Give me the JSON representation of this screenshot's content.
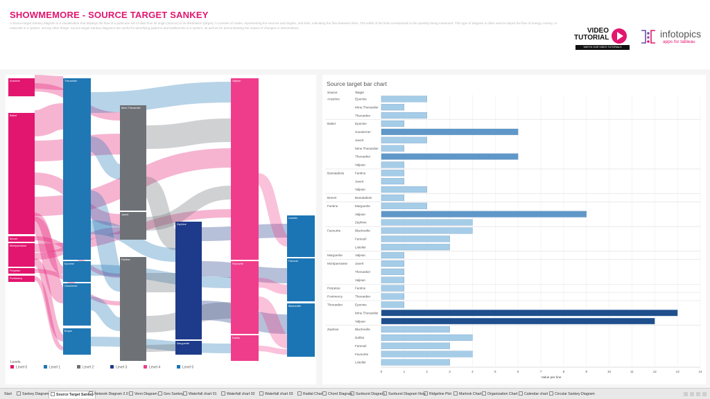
{
  "header": {
    "title": "SHOWMEMORE - SOURCE TARGET SANKEY",
    "description": "A source-target Sankey diagram is a visualization that displays the flow of a particular set of data from its origin (source) to its destination (target). It consists of nodes, representing the sources and targets, and links, indicating the flow between them. The width of the links corresponds to the quantity being measured. This type of diagram is often used to depict the flow of energy, money, or materials in a system, among other things. Source-target Sankey diagrams are useful for identifying patterns and bottlenecks in a system, as well as for demonstrating the impact of changes or interventions."
  },
  "video_logo": {
    "line1": "VIDEO",
    "line2": "TUTORIAL",
    "strip": "WATCH OUR VIDEO TUTORIALS",
    "icon": "play-icon",
    "color": "#e2156f"
  },
  "infotopics_logo": {
    "name": "infotopics",
    "tagline": "apps for tableau",
    "icon": "infotopics-logo-icon"
  },
  "colors": {
    "level0": "#e2156f",
    "level1": "#1f77b4",
    "level2": "#6e7176",
    "level3": "#1e3a8a",
    "level4": "#ef3d8c",
    "level5": "#1b75b5",
    "bar_light": "#a6cde8",
    "bar_mid": "#5f98c8",
    "bar_dark": "#1f4f8c"
  },
  "sankey": {
    "nodes": {
      "Anselme": "Anselme",
      "Babet": "Babet",
      "Brevet": "Brevet",
      "Montparnasse": "Montparnasse",
      "Perpetue": "Perpetue",
      "Pontmercy": "Pontmercy",
      "Thenardier": "Thenardier",
      "Eponine": "Eponine",
      "Gueulemer": "Gueulemer",
      "Brujon": "Brujon",
      "MmeThenardier": "Mme.Thenardier",
      "Javert": "Javert",
      "Fantine": "Fantine",
      "Zephine": "Zephine",
      "Marguerite": "Marguerite",
      "Valjean": "Valjean",
      "Favourite": "Favourite",
      "Dahlia": "Dahlia",
      "Listolier": "Listolier",
      "Fameuil": "Fameuil",
      "Blacheville": "Blacheville"
    },
    "legend": {
      "title": "Levels",
      "items": [
        "Level 0",
        "Level 1",
        "Level 2",
        "Level 3",
        "Level 4",
        "Level 5"
      ]
    }
  },
  "chart_data": {
    "type": "bar",
    "title": "Source target bar chart",
    "source_header": "Source",
    "target_header": "Target",
    "xlabel": "Value per line",
    "xlim": [
      0,
      14
    ],
    "xticks": [
      "0",
      "1",
      "2",
      "3",
      "4",
      "5",
      "6",
      "7",
      "8",
      "9",
      "10",
      "11",
      "12",
      "13",
      "14"
    ],
    "groups": [
      {
        "source": "Anselme",
        "rows": [
          {
            "target": "Eponine",
            "value": 2
          },
          {
            "target": "Mme.Thenardier",
            "value": 1
          },
          {
            "target": "Thenardier",
            "value": 2
          }
        ]
      },
      {
        "source": "Babet",
        "rows": [
          {
            "target": "Eponine",
            "value": 1
          },
          {
            "target": "Gueulemer",
            "value": 6
          },
          {
            "target": "Javert",
            "value": 2
          },
          {
            "target": "Mme.Thenardier",
            "value": 1
          },
          {
            "target": "Thenardier",
            "value": 6
          },
          {
            "target": "Valjean",
            "value": 1
          }
        ]
      },
      {
        "source": "Bamatabois",
        "rows": [
          {
            "target": "Fantine",
            "value": 1
          },
          {
            "target": "Javert",
            "value": 1
          },
          {
            "target": "Valjean",
            "value": 2
          }
        ]
      },
      {
        "source": "Brevet",
        "rows": [
          {
            "target": "Bamatabois",
            "value": 1
          }
        ]
      },
      {
        "source": "Fantine",
        "rows": [
          {
            "target": "Marguerite",
            "value": 2
          },
          {
            "target": "Valjean",
            "value": 9
          },
          {
            "target": "Zephine",
            "value": 4
          }
        ]
      },
      {
        "source": "Favourite",
        "rows": [
          {
            "target": "Blacheville",
            "value": 4
          },
          {
            "target": "Fameuil",
            "value": 3
          },
          {
            "target": "Listolier",
            "value": 3
          }
        ]
      },
      {
        "source": "Marguerite",
        "rows": [
          {
            "target": "Valjean",
            "value": 1
          }
        ]
      },
      {
        "source": "Montparnasse",
        "rows": [
          {
            "target": "Javert",
            "value": 1
          },
          {
            "target": "Thenardier",
            "value": 1
          },
          {
            "target": "Valjean",
            "value": 1
          }
        ]
      },
      {
        "source": "Perpetue",
        "rows": [
          {
            "target": "Fantine",
            "value": 1
          }
        ]
      },
      {
        "source": "Pontmercy",
        "rows": [
          {
            "target": "Thenardier",
            "value": 1
          }
        ]
      },
      {
        "source": "Thenardier",
        "rows": [
          {
            "target": "Eponine",
            "value": 1
          },
          {
            "target": "Mme.Thenardier",
            "value": 13
          },
          {
            "target": "Valjean",
            "value": 12
          }
        ]
      },
      {
        "source": "Zephine",
        "rows": [
          {
            "target": "Blacheville",
            "value": 3
          },
          {
            "target": "Dahlia",
            "value": 4
          },
          {
            "target": "Fameuil",
            "value": 3
          },
          {
            "target": "Favourite",
            "value": 4
          },
          {
            "target": "Listolier",
            "value": 3
          }
        ]
      }
    ]
  },
  "tabs": [
    {
      "label": "Start",
      "active": false
    },
    {
      "label": "Sankey Diagram",
      "active": false
    },
    {
      "label": "Source Target Sankey",
      "active": true
    },
    {
      "label": "Network Diagram 2.0",
      "active": false
    },
    {
      "label": "Venn Diagram",
      "active": false
    },
    {
      "label": "Geo Sankey",
      "active": false
    },
    {
      "label": "Waterfall chart 01",
      "active": false
    },
    {
      "label": "Waterfall chart 02",
      "active": false
    },
    {
      "label": "Waterfall chart 03",
      "active": false
    },
    {
      "label": "Radial Chart",
      "active": false
    },
    {
      "label": "Chord Diagram",
      "active": false
    },
    {
      "label": "Sunburst Diagram",
      "active": false
    },
    {
      "label": "Sunburst Diagram Now",
      "active": false
    },
    {
      "label": "Ridgeline Plot",
      "active": false
    },
    {
      "label": "Marlook Chart",
      "active": false
    },
    {
      "label": "Organization Chart",
      "active": false
    },
    {
      "label": "Calendar chart",
      "active": false
    },
    {
      "label": "Circular Sankey Diagram",
      "active": false
    }
  ]
}
